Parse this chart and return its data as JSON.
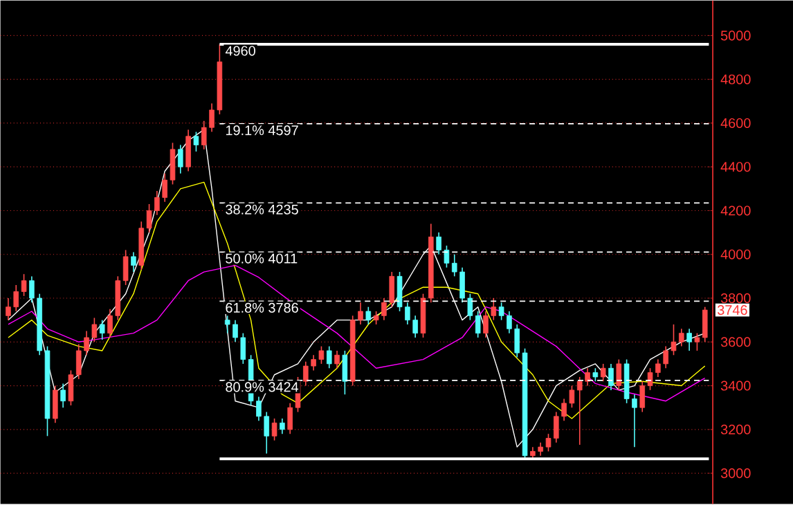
{
  "chart_data": {
    "type": "candlestick",
    "categories": [
      null,
      null,
      null,
      null,
      null,
      null,
      null,
      null,
      null,
      null,
      null,
      null,
      null,
      null,
      null,
      null,
      null,
      null,
      null,
      null,
      null,
      null,
      null,
      null,
      null,
      null,
      null,
      null,
      null,
      null,
      null,
      null,
      null,
      null,
      null,
      null,
      null,
      null,
      null,
      null,
      null,
      null,
      null,
      null,
      null,
      null,
      null,
      null,
      null,
      null,
      null,
      null,
      null,
      null,
      null,
      null,
      null,
      null,
      null,
      null,
      null,
      null,
      null,
      null,
      null,
      null,
      null,
      null,
      null,
      null,
      null,
      null,
      null,
      null,
      null,
      null,
      null,
      null,
      null,
      null,
      null,
      null,
      null,
      null,
      null,
      null,
      null,
      null,
      null,
      null
    ],
    "ohlc": [
      [
        3720,
        3800,
        3700,
        3760
      ],
      [
        3760,
        3860,
        3740,
        3830
      ],
      [
        3830,
        3910,
        3810,
        3880
      ],
      [
        3880,
        3900,
        3780,
        3800
      ],
      [
        3800,
        3820,
        3540,
        3560
      ],
      [
        3560,
        3580,
        3170,
        3250
      ],
      [
        3250,
        3400,
        3230,
        3380
      ],
      [
        3380,
        3410,
        3300,
        3330
      ],
      [
        3330,
        3470,
        3310,
        3450
      ],
      [
        3450,
        3590,
        3430,
        3560
      ],
      [
        3560,
        3650,
        3540,
        3620
      ],
      [
        3620,
        3710,
        3600,
        3680
      ],
      [
        3680,
        3700,
        3610,
        3640
      ],
      [
        3640,
        3750,
        3620,
        3720
      ],
      [
        3720,
        3900,
        3700,
        3880
      ],
      [
        3880,
        4020,
        3860,
        3990
      ],
      [
        3990,
        4010,
        3920,
        3950
      ],
      [
        3950,
        4150,
        3930,
        4120
      ],
      [
        4120,
        4230,
        4100,
        4200
      ],
      [
        4200,
        4290,
        4180,
        4260
      ],
      [
        4260,
        4370,
        4240,
        4340
      ],
      [
        4340,
        4510,
        4320,
        4480
      ],
      [
        4480,
        4500,
        4370,
        4400
      ],
      [
        4400,
        4570,
        4380,
        4540
      ],
      [
        4540,
        4560,
        4470,
        4500
      ],
      [
        4500,
        4610,
        4480,
        4580
      ],
      [
        4580,
        4690,
        4560,
        4660
      ],
      [
        4660,
        4960,
        4640,
        4880
      ],
      [
        3700,
        3720,
        3640,
        3680
      ],
      [
        3680,
        3700,
        3600,
        3620
      ],
      [
        3620,
        3640,
        3500,
        3520
      ],
      [
        3520,
        3540,
        3310,
        3330
      ],
      [
        3330,
        3350,
        3240,
        3260
      ],
      [
        3260,
        3280,
        3090,
        3170
      ],
      [
        3170,
        3250,
        3150,
        3230
      ],
      [
        3230,
        3250,
        3180,
        3200
      ],
      [
        3200,
        3320,
        3180,
        3300
      ],
      [
        3300,
        3440,
        3280,
        3420
      ],
      [
        3420,
        3510,
        3400,
        3490
      ],
      [
        3490,
        3540,
        3470,
        3520
      ],
      [
        3520,
        3580,
        3500,
        3560
      ],
      [
        3560,
        3580,
        3480,
        3500
      ],
      [
        3500,
        3560,
        3480,
        3540
      ],
      [
        3540,
        3560,
        3360,
        3420
      ],
      [
        3420,
        3720,
        3400,
        3700
      ],
      [
        3700,
        3780,
        3680,
        3740
      ],
      [
        3740,
        3760,
        3680,
        3700
      ],
      [
        3700,
        3740,
        3680,
        3720
      ],
      [
        3720,
        3800,
        3700,
        3780
      ],
      [
        3780,
        3920,
        3760,
        3900
      ],
      [
        3900,
        3920,
        3740,
        3760
      ],
      [
        3760,
        3780,
        3680,
        3700
      ],
      [
        3700,
        3720,
        3620,
        3640
      ],
      [
        3640,
        3820,
        3620,
        3800
      ],
      [
        3800,
        4140,
        3780,
        4080
      ],
      [
        4080,
        4100,
        4000,
        4020
      ],
      [
        4020,
        4040,
        3940,
        3960
      ],
      [
        3960,
        4000,
        3900,
        3920
      ],
      [
        3920,
        3940,
        3780,
        3800
      ],
      [
        3800,
        3820,
        3700,
        3720
      ],
      [
        3720,
        3740,
        3620,
        3640
      ],
      [
        3640,
        3740,
        3620,
        3720
      ],
      [
        3720,
        3800,
        3700,
        3760
      ],
      [
        3760,
        3780,
        3700,
        3720
      ],
      [
        3720,
        3740,
        3640,
        3660
      ],
      [
        3660,
        3680,
        3530,
        3550
      ],
      [
        3550,
        3570,
        3066,
        3080
      ],
      [
        3080,
        3120,
        3070,
        3100
      ],
      [
        3100,
        3140,
        3080,
        3120
      ],
      [
        3120,
        3180,
        3100,
        3160
      ],
      [
        3160,
        3280,
        3140,
        3260
      ],
      [
        3260,
        3340,
        3240,
        3320
      ],
      [
        3320,
        3400,
        3300,
        3380
      ],
      [
        3380,
        3440,
        3130,
        3420
      ],
      [
        3420,
        3480,
        3400,
        3460
      ],
      [
        3460,
        3480,
        3420,
        3440
      ],
      [
        3440,
        3500,
        3420,
        3480
      ],
      [
        3480,
        3500,
        3380,
        3400
      ],
      [
        3400,
        3520,
        3380,
        3500
      ],
      [
        3500,
        3520,
        3320,
        3340
      ],
      [
        3340,
        3360,
        3120,
        3300
      ],
      [
        3300,
        3420,
        3280,
        3400
      ],
      [
        3400,
        3480,
        3380,
        3460
      ],
      [
        3460,
        3520,
        3440,
        3500
      ],
      [
        3500,
        3580,
        3480,
        3560
      ],
      [
        3560,
        3680,
        3540,
        3600
      ],
      [
        3600,
        3660,
        3580,
        3640
      ],
      [
        3640,
        3660,
        3560,
        3600
      ],
      [
        3600,
        3640,
        3560,
        3620
      ],
      [
        3620,
        3760,
        3600,
        3746
      ]
    ],
    "colors": [
      "#ff4a4a",
      "#ff4a4a",
      "#ff4a4a",
      "#54fcfc",
      "#54fcfc",
      "#54fcfc",
      "#ff4a4a",
      "#54fcfc",
      "#ff4a4a",
      "#ff4a4a",
      "#ff4a4a",
      "#ff4a4a",
      "#54fcfc",
      "#ff4a4a",
      "#ff4a4a",
      "#ff4a4a",
      "#54fcfc",
      "#ff4a4a",
      "#ff4a4a",
      "#ff4a4a",
      "#ff4a4a",
      "#ff4a4a",
      "#54fcfc",
      "#ff4a4a",
      "#54fcfc",
      "#ff4a4a",
      "#ff4a4a",
      "#ff4a4a",
      "#54fcfc",
      "#54fcfc",
      "#54fcfc",
      "#54fcfc",
      "#54fcfc",
      "#54fcfc",
      "#ff4a4a",
      "#54fcfc",
      "#ff4a4a",
      "#ff4a4a",
      "#ff4a4a",
      "#ff4a4a",
      "#ff4a4a",
      "#54fcfc",
      "#ff4a4a",
      "#54fcfc",
      "#ff4a4a",
      "#ff4a4a",
      "#54fcfc",
      "#ff4a4a",
      "#ff4a4a",
      "#ff4a4a",
      "#54fcfc",
      "#54fcfc",
      "#54fcfc",
      "#ff4a4a",
      "#ff4a4a",
      "#54fcfc",
      "#54fcfc",
      "#54fcfc",
      "#54fcfc",
      "#54fcfc",
      "#54fcfc",
      "#ff4a4a",
      "#ff4a4a",
      "#54fcfc",
      "#54fcfc",
      "#54fcfc",
      "#54fcfc",
      "#ff4a4a",
      "#ff4a4a",
      "#ff4a4a",
      "#ff4a4a",
      "#ff4a4a",
      "#ff4a4a",
      "#ff4a4a",
      "#ff4a4a",
      "#54fcfc",
      "#ff4a4a",
      "#54fcfc",
      "#ff4a4a",
      "#54fcfc",
      "#54fcfc",
      "#ff4a4a",
      "#ff4a4a",
      "#ff4a4a",
      "#ff4a4a",
      "#ff4a4a",
      "#ff4a4a",
      "#54fcfc",
      "#ff4a4a",
      "#ff4a4a"
    ],
    "series": [
      {
        "type": "line",
        "color": "#ffffff",
        "values": [
          3700,
          null,
          null,
          3800,
          null,
          null,
          3370,
          null,
          null,
          3450,
          null,
          3640,
          null,
          null,
          null,
          3820,
          null,
          null,
          4100,
          null,
          4380,
          null,
          null,
          4520,
          null,
          4570,
          4300,
          null,
          null,
          3330,
          null,
          null,
          3300,
          null,
          3450,
          null,
          null,
          3500,
          null,
          3600,
          null,
          null,
          3700,
          null,
          null,
          null,
          3700,
          null,
          null,
          3760,
          null,
          null,
          null,
          4000,
          4040,
          null,
          3870,
          null,
          3700,
          null,
          3760,
          null,
          null,
          3420,
          null,
          3120,
          null,
          3200,
          null,
          null,
          3400,
          null,
          null,
          3470,
          null,
          3500,
          null,
          null,
          3380,
          null,
          3400,
          null,
          3520,
          null,
          null,
          null,
          3600,
          null,
          null,
          3640
        ]
      },
      {
        "type": "line",
        "color": "#ffff00",
        "values": [
          3620,
          null,
          null,
          3700,
          null,
          3630,
          null,
          null,
          null,
          3580,
          null,
          null,
          3560,
          null,
          null,
          null,
          3820,
          null,
          null,
          4150,
          null,
          null,
          4300,
          null,
          null,
          4330,
          null,
          null,
          4050,
          null,
          null,
          3700,
          3480,
          null,
          null,
          3360,
          null,
          3320,
          null,
          null,
          null,
          null,
          3480,
          null,
          null,
          null,
          3680,
          null,
          null,
          3780,
          null,
          null,
          null,
          3850,
          null,
          null,
          3850,
          null,
          null,
          null,
          3820,
          3750,
          null,
          3600,
          null,
          null,
          null,
          3450,
          null,
          3330,
          null,
          null,
          3250,
          null,
          null,
          null,
          null,
          3410,
          null,
          null,
          null,
          3420,
          null,
          null,
          null,
          null,
          3400,
          null,
          null,
          3490
        ]
      },
      {
        "type": "line",
        "color": "#ff00ff",
        "values": [
          3680,
          null,
          null,
          3740,
          null,
          3660,
          null,
          null,
          null,
          3600,
          null,
          3610,
          null,
          null,
          null,
          null,
          3640,
          null,
          null,
          3700,
          null,
          null,
          null,
          3880,
          null,
          3920,
          null,
          null,
          null,
          3950,
          null,
          null,
          3895,
          null,
          null,
          null,
          null,
          3760,
          null,
          null,
          null,
          null,
          3640,
          null,
          null,
          null,
          null,
          3480,
          null,
          null,
          null,
          null,
          null,
          3520,
          null,
          null,
          null,
          null,
          3620,
          null,
          null,
          3760,
          null,
          3740,
          null,
          null,
          null,
          null,
          null,
          null,
          3580,
          null,
          null,
          null,
          null,
          3410,
          null,
          null,
          null,
          3370,
          null,
          null,
          null,
          null,
          3330,
          null,
          null,
          null,
          null,
          3435
        ]
      }
    ],
    "ylim": [
      2860,
      5160
    ],
    "yticks": [
      3000,
      3200,
      3400,
      3600,
      3800,
      4000,
      4200,
      4400,
      4600,
      4800,
      5000
    ],
    "grid": "y",
    "tick_labels": "y",
    "ref_lines": [
      {
        "axis": "y",
        "value": 4960,
        "label": "4960",
        "color": "#ffffff",
        "line_style": "solid"
      },
      {
        "axis": "y",
        "value": 4597,
        "label": "19.1% 4597",
        "color": "#ffffff",
        "line_style": "dashed"
      },
      {
        "axis": "y",
        "value": 4235,
        "label": "38.2% 4235",
        "color": "#ffffff",
        "line_style": "dashed"
      },
      {
        "axis": "y",
        "value": 4011,
        "label": "50.0% 4011",
        "color": "#ffffff",
        "line_style": "dashed"
      },
      {
        "axis": "y",
        "value": 3786,
        "label": "61.8% 3786",
        "color": "#ffffff",
        "line_style": "dashed"
      },
      {
        "axis": "y",
        "value": 3424,
        "label": "80.9% 3424",
        "color": "#ffffff",
        "line_style": "dashed"
      },
      {
        "axis": "y",
        "value": 3066,
        "label": null,
        "color": "#ffffff",
        "line_style": "solid"
      }
    ],
    "annotations": [
      {
        "text": "3746",
        "y": 3746
      }
    ]
  }
}
